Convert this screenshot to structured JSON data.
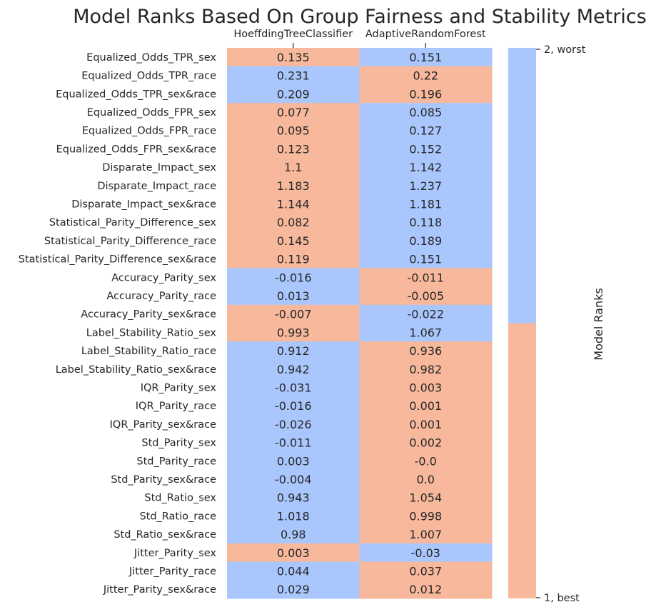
{
  "chart_data": {
    "type": "heatmap",
    "title": "Model Ranks Based On Group Fairness and Stability Metrics",
    "columns": [
      "HoeffdingTreeClassifier",
      "AdaptiveRandomForest"
    ],
    "rows": [
      "Equalized_Odds_TPR_sex",
      "Equalized_Odds_TPR_race",
      "Equalized_Odds_TPR_sex&race",
      "Equalized_Odds_FPR_sex",
      "Equalized_Odds_FPR_race",
      "Equalized_Odds_FPR_sex&race",
      "Disparate_Impact_sex",
      "Disparate_Impact_race",
      "Disparate_Impact_sex&race",
      "Statistical_Parity_Difference_sex",
      "Statistical_Parity_Difference_race",
      "Statistical_Parity_Difference_sex&race",
      "Accuracy_Parity_sex",
      "Accuracy_Parity_race",
      "Accuracy_Parity_sex&race",
      "Label_Stability_Ratio_sex",
      "Label_Stability_Ratio_race",
      "Label_Stability_Ratio_sex&race",
      "IQR_Parity_sex",
      "IQR_Parity_race",
      "IQR_Parity_sex&race",
      "Std_Parity_sex",
      "Std_Parity_race",
      "Std_Parity_sex&race",
      "Std_Ratio_sex",
      "Std_Ratio_race",
      "Std_Ratio_sex&race",
      "Jitter_Parity_sex",
      "Jitter_Parity_race",
      "Jitter_Parity_sex&race"
    ],
    "values": [
      [
        "0.135",
        "0.151"
      ],
      [
        "0.231",
        "0.22"
      ],
      [
        "0.209",
        "0.196"
      ],
      [
        "0.077",
        "0.085"
      ],
      [
        "0.095",
        "0.127"
      ],
      [
        "0.123",
        "0.152"
      ],
      [
        "1.1",
        "1.142"
      ],
      [
        "1.183",
        "1.237"
      ],
      [
        "1.144",
        "1.181"
      ],
      [
        "0.082",
        "0.118"
      ],
      [
        "0.145",
        "0.189"
      ],
      [
        "0.119",
        "0.151"
      ],
      [
        "-0.016",
        "-0.011"
      ],
      [
        "0.013",
        "-0.005"
      ],
      [
        "-0.007",
        "-0.022"
      ],
      [
        "0.993",
        "1.067"
      ],
      [
        "0.912",
        "0.936"
      ],
      [
        "0.942",
        "0.982"
      ],
      [
        "-0.031",
        "0.003"
      ],
      [
        "-0.016",
        "0.001"
      ],
      [
        "-0.026",
        "0.001"
      ],
      [
        "-0.011",
        "0.002"
      ],
      [
        "0.003",
        "-0.0"
      ],
      [
        "-0.004",
        "0.0"
      ],
      [
        "0.943",
        "1.054"
      ],
      [
        "1.018",
        "0.998"
      ],
      [
        "0.98",
        "1.007"
      ],
      [
        "0.003",
        "-0.03"
      ],
      [
        "0.044",
        "0.037"
      ],
      [
        "0.029",
        "0.012"
      ]
    ],
    "ranks": [
      [
        1,
        2
      ],
      [
        2,
        1
      ],
      [
        2,
        1
      ],
      [
        1,
        2
      ],
      [
        1,
        2
      ],
      [
        1,
        2
      ],
      [
        1,
        2
      ],
      [
        1,
        2
      ],
      [
        1,
        2
      ],
      [
        1,
        2
      ],
      [
        1,
        2
      ],
      [
        1,
        2
      ],
      [
        2,
        1
      ],
      [
        2,
        1
      ],
      [
        1,
        2
      ],
      [
        1,
        2
      ],
      [
        2,
        1
      ],
      [
        2,
        1
      ],
      [
        2,
        1
      ],
      [
        2,
        1
      ],
      [
        2,
        1
      ],
      [
        2,
        1
      ],
      [
        2,
        1
      ],
      [
        2,
        1
      ],
      [
        2,
        1
      ],
      [
        2,
        1
      ],
      [
        2,
        1
      ],
      [
        1,
        2
      ],
      [
        2,
        1
      ],
      [
        2,
        1
      ]
    ],
    "colorbar": {
      "label": "Model Ranks",
      "ticks": [
        {
          "value": 2,
          "label": "2, worst"
        },
        {
          "value": 1,
          "label": "1, best"
        }
      ]
    },
    "colors": {
      "1": "#f7b89c",
      "2": "#aac7fd"
    }
  }
}
